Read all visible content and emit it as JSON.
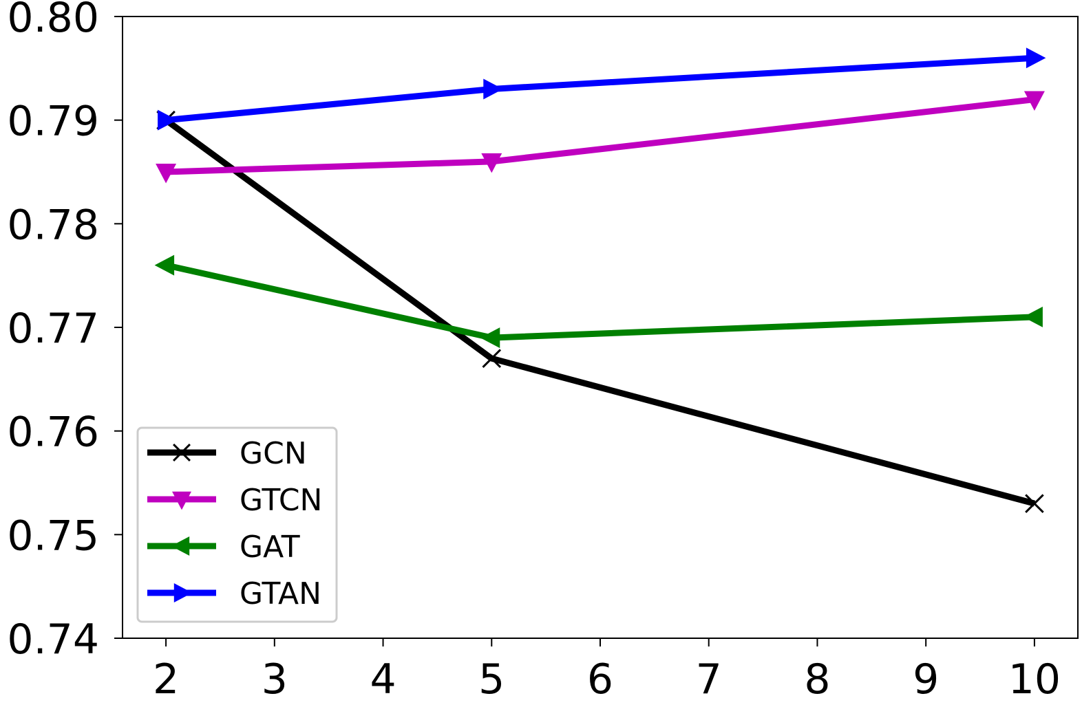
{
  "chart_data": {
    "type": "line",
    "title": "",
    "xlabel": "",
    "ylabel": "",
    "x": [
      2,
      5,
      10
    ],
    "xlim": [
      1.6,
      10.4
    ],
    "ylim": [
      0.74,
      0.8
    ],
    "xticks": [
      2,
      3,
      4,
      5,
      6,
      7,
      8,
      9,
      10
    ],
    "yticks": [
      0.74,
      0.75,
      0.76,
      0.77,
      0.78,
      0.79,
      0.8
    ],
    "ytick_labels": [
      "0.74",
      "0.75",
      "0.76",
      "0.77",
      "0.78",
      "0.79",
      "0.80"
    ],
    "grid": false,
    "legend_position": "lower-left",
    "series": [
      {
        "name": "GCN",
        "values": [
          0.79,
          0.767,
          0.753
        ],
        "color": "#000000",
        "marker": "x"
      },
      {
        "name": "GTCN",
        "values": [
          0.785,
          0.786,
          0.792
        ],
        "color": "#bf00bf",
        "marker": "triangle-down"
      },
      {
        "name": "GAT",
        "values": [
          0.776,
          0.769,
          0.771
        ],
        "color": "#008000",
        "marker": "triangle-left"
      },
      {
        "name": "GTAN",
        "values": [
          0.79,
          0.793,
          0.796
        ],
        "color": "#0000ff",
        "marker": "triangle-right"
      }
    ]
  }
}
